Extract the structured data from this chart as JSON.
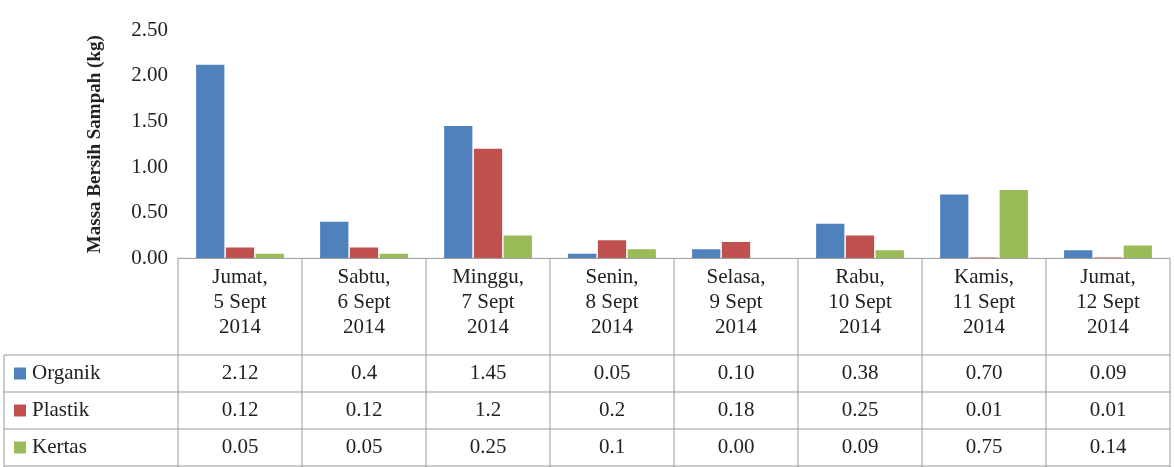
{
  "chart_data": {
    "type": "bar",
    "ylabel": "Massa Bersih Sampah (kg)",
    "categories": [
      "Jumat, 5 Sept 2014",
      "Sabtu, 6 Sept 2014",
      "Minggu, 7 Sept 2014",
      "Senin, 8 Sept 2014",
      "Selasa, 9 Sept 2014",
      "Rabu, 10 Sept 2014",
      "Kamis, 11 Sept 2014",
      "Jumat, 12 Sept 2014"
    ],
    "series": [
      {
        "name": "Organik",
        "color": "#4f81bd",
        "values": [
          2.12,
          0.4,
          1.45,
          0.05,
          0.1,
          0.38,
          0.7,
          0.09
        ],
        "value_labels": [
          "2.12",
          "0.4",
          "1.45",
          "0.05",
          "0.10",
          "0.38",
          "0.70",
          "0.09"
        ]
      },
      {
        "name": "Plastik",
        "color": "#c0504d",
        "values": [
          0.12,
          0.12,
          1.2,
          0.2,
          0.18,
          0.25,
          0.01,
          0.01
        ],
        "value_labels": [
          "0.12",
          "0.12",
          "1.2",
          "0.2",
          "0.18",
          "0.25",
          "0.01",
          "0.01"
        ]
      },
      {
        "name": "Kertas",
        "color": "#9bbb59",
        "values": [
          0.05,
          0.05,
          0.25,
          0.1,
          0.0,
          0.09,
          0.75,
          0.14
        ],
        "value_labels": [
          "0.05",
          "0.05",
          "0.25",
          "0.1",
          "0.00",
          "0.09",
          "0.75",
          "0.14"
        ]
      }
    ],
    "ylim": [
      0,
      2.5
    ],
    "yticks": [
      {
        "value": 0,
        "label": "0.00"
      },
      {
        "value": 0.5,
        "label": "0.50"
      },
      {
        "value": 1,
        "label": "1.00"
      },
      {
        "value": 1.5,
        "label": "1.50"
      },
      {
        "value": 2,
        "label": "2.00"
      },
      {
        "value": 2.5,
        "label": "2.50"
      }
    ],
    "grid": false,
    "legend": "bottom left"
  }
}
